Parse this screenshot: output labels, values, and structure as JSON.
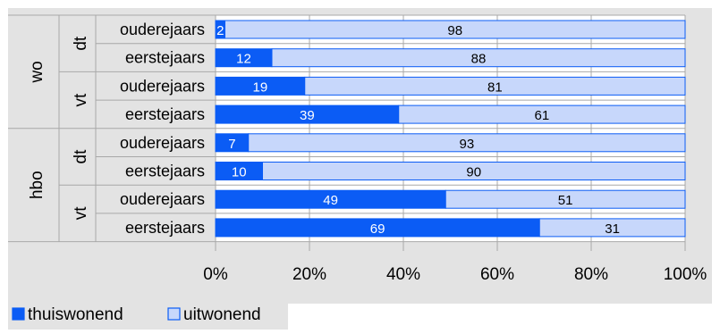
{
  "chart_data": {
    "type": "bar",
    "orientation": "horizontal",
    "stacked": "percent",
    "groups": [
      {
        "label": "wo",
        "subgroups": [
          {
            "label": "dt",
            "rows": [
              "ouderejaars",
              "eerstejaars"
            ]
          },
          {
            "label": "vt",
            "rows": [
              "ouderejaars",
              "eerstejaars"
            ]
          }
        ]
      },
      {
        "label": "hbo",
        "subgroups": [
          {
            "label": "dt",
            "rows": [
              "ouderejaars",
              "eerstejaars"
            ]
          },
          {
            "label": "vt",
            "rows": [
              "ouderejaars",
              "eerstejaars"
            ]
          }
        ]
      }
    ],
    "categories": [
      "ouderejaars",
      "eerstejaars",
      "ouderejaars",
      "eerstejaars",
      "ouderejaars",
      "eerstejaars",
      "ouderejaars",
      "eerstejaars"
    ],
    "series": [
      {
        "name": "thuiswonend",
        "color": "#0b5cf5",
        "values": [
          2,
          12,
          19,
          39,
          7,
          10,
          49,
          69
        ]
      },
      {
        "name": "uitwonend",
        "color": "#c7d7fb",
        "values": [
          98,
          88,
          81,
          61,
          93,
          90,
          51,
          31
        ]
      }
    ],
    "xlim": [
      0,
      100
    ],
    "xticks": [
      "0%",
      "20%",
      "40%",
      "60%",
      "80%",
      "100%"
    ],
    "grid": true,
    "legend_position": "bottom-left",
    "colors": {
      "background": "#e3e3e3",
      "plot_background": "#ffffff",
      "grid": "#a8a8a8",
      "bar_border": "#0b5cf5"
    }
  }
}
